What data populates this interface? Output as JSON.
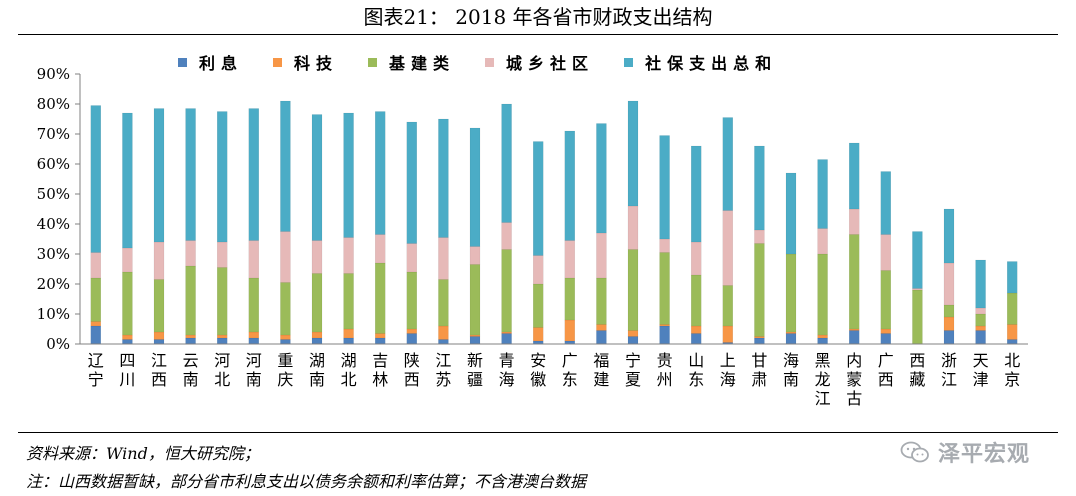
{
  "header": {
    "title": "图表21：  2018 年各省市财政支出结构"
  },
  "legend": [
    {
      "label": "利息",
      "color": "#4F81BD"
    },
    {
      "label": "科技",
      "color": "#F79646"
    },
    {
      "label": "基建类",
      "color": "#9BBB59"
    },
    {
      "label": "城乡社区",
      "color": "#E6B9B8"
    },
    {
      "label": "社保支出总和",
      "color": "#4BACC6"
    }
  ],
  "chart_data": {
    "type": "bar",
    "stacked": true,
    "categories": [
      "辽宁",
      "四川",
      "江西",
      "云南",
      "河北",
      "河南",
      "重庆",
      "湖南",
      "湖北",
      "吉林",
      "陕西",
      "江苏",
      "新疆",
      "青海",
      "安徽",
      "广东",
      "福建",
      "宁夏",
      "贵州",
      "山东",
      "上海",
      "甘肃",
      "海南",
      "黑龙江",
      "内蒙古",
      "广西",
      "西藏",
      "浙江",
      "天津",
      "北京"
    ],
    "y_ticks": [
      "0%",
      "10%",
      "20%",
      "30%",
      "40%",
      "50%",
      "60%",
      "70%",
      "80%",
      "90%"
    ],
    "ylim": [
      0,
      90
    ],
    "grid": false,
    "legend_position": "top",
    "series": [
      {
        "name": "利息",
        "color": "#4F81BD",
        "values": [
          6.0,
          1.5,
          1.5,
          2.0,
          2.0,
          2.0,
          1.5,
          2.0,
          2.0,
          2.0,
          3.5,
          1.5,
          2.5,
          3.5,
          1.0,
          1.0,
          4.5,
          2.5,
          6.0,
          3.5,
          0.5,
          2.0,
          3.5,
          2.0,
          4.5,
          3.5,
          0.0,
          4.5,
          4.5,
          1.5
        ]
      },
      {
        "name": "科技",
        "color": "#F79646",
        "values": [
          1.5,
          1.5,
          2.5,
          1.0,
          1.0,
          2.0,
          1.5,
          2.0,
          3.0,
          1.5,
          1.5,
          4.5,
          0.5,
          0.5,
          4.5,
          7.0,
          2.0,
          2.0,
          0.5,
          2.5,
          5.5,
          0.5,
          0.5,
          1.0,
          0.5,
          1.5,
          0.0,
          4.5,
          1.5,
          5.0
        ]
      },
      {
        "name": "基建类",
        "color": "#9BBB59",
        "values": [
          14.5,
          21.0,
          17.5,
          23.0,
          22.5,
          18.0,
          17.5,
          19.5,
          18.5,
          23.5,
          19.0,
          15.5,
          23.5,
          27.5,
          14.5,
          14.0,
          15.5,
          27.0,
          24.0,
          17.0,
          13.5,
          31.0,
          26.0,
          27.0,
          31.5,
          19.5,
          18.0,
          4.0,
          4.0,
          10.5
        ]
      },
      {
        "name": "城乡社区",
        "color": "#E6B9B8",
        "values": [
          8.5,
          8.0,
          12.5,
          8.5,
          8.5,
          12.5,
          17.0,
          11.0,
          12.0,
          9.5,
          9.5,
          14.0,
          6.0,
          9.0,
          9.5,
          12.5,
          15.0,
          14.5,
          4.5,
          11.0,
          25.0,
          4.5,
          0.0,
          8.5,
          8.5,
          12.0,
          0.5,
          14.0,
          2.0,
          0.0
        ]
      },
      {
        "name": "社保支出总和",
        "color": "#4BACC6",
        "values": [
          49.0,
          45.0,
          44.5,
          44.0,
          43.5,
          44.0,
          43.5,
          42.0,
          41.5,
          41.0,
          40.5,
          39.5,
          39.5,
          39.5,
          38.0,
          36.5,
          36.5,
          35.0,
          34.5,
          32.0,
          31.0,
          28.0,
          27.0,
          23.0,
          22.0,
          21.0,
          19.0,
          18.0,
          16.0,
          10.5
        ]
      }
    ]
  },
  "footer": {
    "source": "资料来源：Wind，恒大研究院；",
    "note": "注：山西数据暂缺，部分省市利息支出以债务余额和利率估算；不含港澳台数据",
    "watermark": "泽平宏观"
  }
}
